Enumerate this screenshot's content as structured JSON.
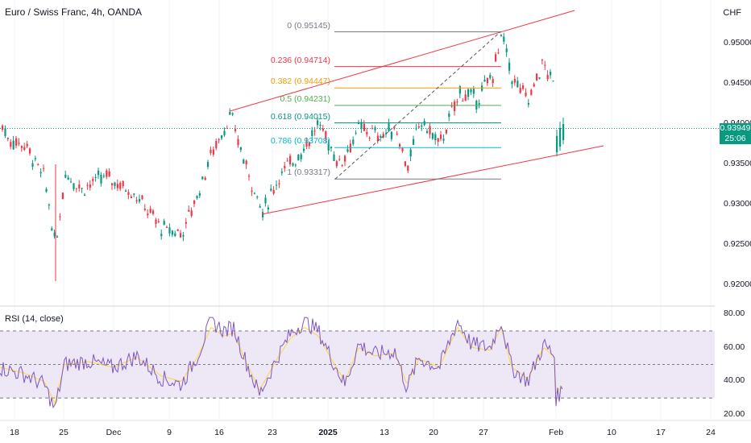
{
  "header": {
    "title": "Euro / Swiss Franc, 4h, OANDA",
    "currency": "CHF"
  },
  "price_axis": {
    "ticks": [
      "0.95000",
      "0.94500",
      "0.94000",
      "0.93500",
      "0.93000",
      "0.92500",
      "0.92000"
    ]
  },
  "current_price": {
    "value": "0.93949",
    "countdown": "25:06",
    "color": "#089981"
  },
  "fib_levels": [
    {
      "label": "0 (0.95145)",
      "color": "#787b86"
    },
    {
      "label": "0.236 (0.94714)",
      "color": "#f23645"
    },
    {
      "label": "0.382 (0.94447)",
      "color": "#ff9800"
    },
    {
      "label": "0.5 (0.94231)",
      "color": "#4caf50"
    },
    {
      "label": "0.618 (0.94015)",
      "color": "#089981"
    },
    {
      "label": "0.786 (0.93708)",
      "color": "#00bcd4"
    },
    {
      "label": "1 (0.93317)",
      "color": "#787b86"
    }
  ],
  "rsi": {
    "title": "RSI (14, close)",
    "ticks": [
      "80.00",
      "60.00",
      "40.00",
      "20.00"
    ]
  },
  "time_axis": {
    "ticks": [
      "18",
      "25",
      "Dec",
      "9",
      "16",
      "23",
      "2025",
      "13",
      "20",
      "27",
      "Feb",
      "10",
      "17",
      "24"
    ]
  },
  "colors": {
    "up": "#089981",
    "down": "#f23645",
    "channel": "#f23645",
    "rsi_line": "#7e57c2",
    "rsi_ma": "#fdd835",
    "rsi_band": "#ede7f6"
  }
}
